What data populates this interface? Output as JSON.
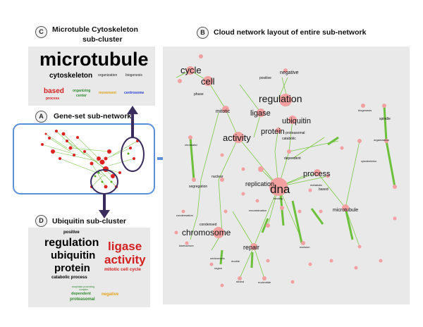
{
  "panels": {
    "C": {
      "label": "C",
      "title_line1": "Microtuble Cytoskeleton",
      "title_line2": "sub-cluster",
      "words": {
        "microtubule": "microtubule",
        "cytoskeleton": "cytoskeleton",
        "organization": "organization",
        "biogenesis": "biogenesis",
        "based": "based",
        "process": "process",
        "organizing": "organizing",
        "center": "center",
        "movement": "movement",
        "centrosome": "centrosome"
      }
    },
    "A": {
      "label": "A",
      "title": "Gene-set sub-network"
    },
    "B": {
      "label": "B",
      "title": "Cloud network layout of entire sub-network"
    },
    "D": {
      "label": "D",
      "title": "Ubiquitin sub-cluster",
      "words": {
        "positive": "positive",
        "regulation": "regulation",
        "ubiquitin": "ubiquitin",
        "protein": "protein",
        "catabolic_process": "catabolic process",
        "ligase": "ligase",
        "activity": "activity",
        "mitotic_cell_cycle": "mitotic cell cycle",
        "small1": "anaphase  promoting",
        "small2": "complex",
        "dependent": "dependent",
        "proteasomal": "proteasomal",
        "negative": "negative"
      }
    }
  },
  "network_labels": {
    "cycle": "cycle",
    "cell": "cell",
    "mitotic": "mitotic",
    "phase": "phase",
    "positive": "positive",
    "negative": "negative",
    "regulation": "regulation",
    "ligase": "ligase",
    "ubiquitin": "ubiquitin",
    "protein": "protein",
    "proteasomal": "proteasomal",
    "catabolic": "catabolic",
    "activity": "activity",
    "dependent": "dependent",
    "process": "process",
    "replication": "replication",
    "dna": "dna",
    "metabolic": "metabolic",
    "based": "based",
    "microtubule": "microtubule",
    "nuclear": "nuclear",
    "segregation": "segregation",
    "condensed": "condensed",
    "chromosome": "chromosome",
    "repair": "repair",
    "recombination": "recombination",
    "spindle": "spindle",
    "organization": "organization",
    "cytoskeleton": "cytoskeleton",
    "biogenesis": "biogenesis",
    "chromatid": "chromatid",
    "binding": "binding",
    "centromeric": "centromeric",
    "region": "region",
    "strand": "strand",
    "double": "double",
    "nucleotide": "nucleotide",
    "kinetochore": "kinetochore",
    "condensation": "condensation",
    "excision": "excision",
    "break": "break",
    "homologous": "homologous",
    "mismatch": "mismatch",
    "meiotic": "meiotic",
    "transition": "transition",
    "damage": "damage",
    "checkpoint": "checkpoint",
    "response": "response",
    "stimulus": "stimulus",
    "mitosis": "mitosis",
    "anaphase": "anaphase",
    "initiation": "initiation",
    "sister": "sister",
    "strand2": "strand",
    "synthesis": "synthesis",
    "assembly": "assembly",
    "orc": "orc",
    "nucleic": "nucleic",
    "mcm": "mcm",
    "helicase": "helicase",
    "cohesion": "cohesion",
    "chromatin": "chromatin",
    "unwinding": "unwinding",
    "mismatch2": "mismatch",
    "nucleus": "nucleus",
    "elongation": "elongation",
    "complex": "complex",
    "separation": "separation",
    "interstrand": "interstrand",
    "crosslink": "crosslink",
    "modification": "modification"
  },
  "colors": {
    "panel_bg": "#e9e9e9",
    "node_pink": "#f2a0a0",
    "edge_green": "#7ac943",
    "arrow_blue": "#5b8fd9",
    "arrow_dark": "#3a2c5c",
    "red_word": "#d42020",
    "green_word": "#2e8b2e",
    "orange_word": "#e3a21a",
    "blue_word": "#2a3fd6"
  }
}
